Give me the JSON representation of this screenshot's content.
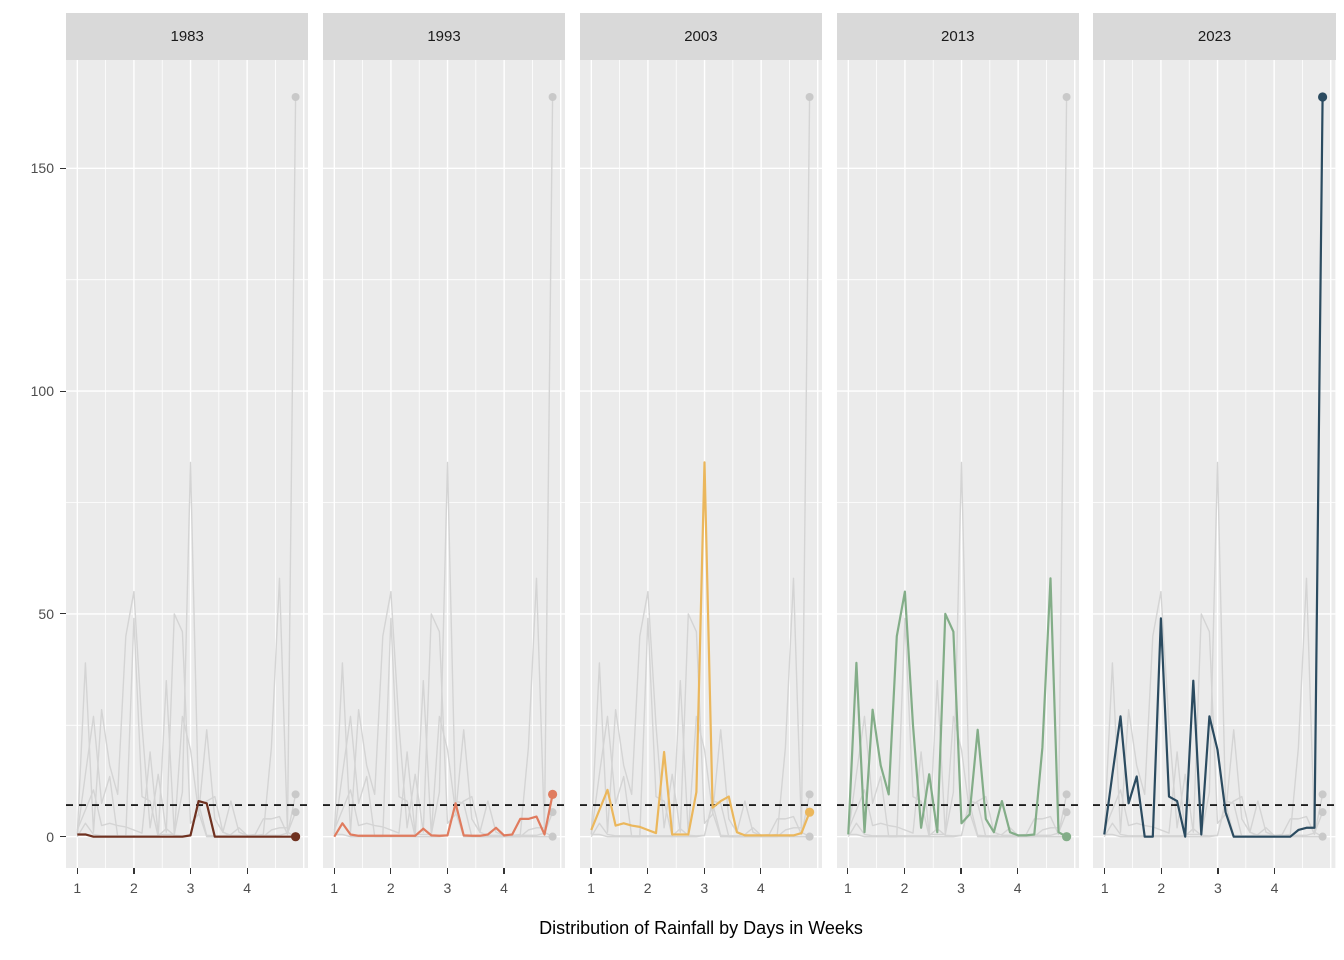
{
  "chart_data": {
    "type": "line",
    "title": "",
    "xlabel": "Distribution of Rainfall by Days in Weeks",
    "ylabel": "",
    "facets": [
      "1983",
      "1993",
      "2003",
      "2013",
      "2023"
    ],
    "x_ticks": [
      1,
      2,
      3,
      4
    ],
    "y_ticks": [
      0,
      50,
      100,
      150
    ],
    "xlim": [
      0.8,
      5.08
    ],
    "ylim": [
      -7,
      174
    ],
    "x_minor_gridlines": [
      1.5,
      2.5,
      3.5,
      4.5
    ],
    "x_major_gridlines": [
      1,
      2,
      3,
      4,
      5
    ],
    "y_minor_gridlines": [
      25,
      75,
      125
    ],
    "x_mapping": "day d of month mapped to week = 1 + (d-1)/7, 28 days per year",
    "reference_line": {
      "value": 7.1,
      "style": "dashed",
      "color": "#000000"
    },
    "grid": true,
    "legend_position": "none",
    "background_series_color": "#d4d4d4",
    "background_dot_color": "#c9c9c9",
    "panel_bg": "#ebebeb",
    "strip_bg": "#d9d9d9",
    "series": [
      {
        "name": "1983",
        "color": "#6f3120",
        "values": [
          0.5,
          0.5,
          0,
          0,
          0,
          0,
          0,
          0,
          0,
          0,
          0,
          0,
          0,
          0,
          0.3,
          8,
          7.5,
          0,
          0,
          0,
          0,
          0,
          0,
          0,
          0,
          0,
          0,
          0
        ]
      },
      {
        "name": "1993",
        "color": "#e07b5e",
        "values": [
          0,
          3,
          0.5,
          0.2,
          0.2,
          0.2,
          0.2,
          0.2,
          0.2,
          0.2,
          0.2,
          1.8,
          0.3,
          0.2,
          0.3,
          7.5,
          0.3,
          0.2,
          0.2,
          0.5,
          2,
          0.3,
          0.5,
          4,
          4,
          4.5,
          0.5,
          9.5
        ]
      },
      {
        "name": "2003",
        "color": "#ebb75c",
        "values": [
          1.5,
          6,
          10.5,
          2.5,
          3,
          2.5,
          2.2,
          1.5,
          0.8,
          19,
          0.5,
          0.5,
          0.5,
          10,
          84,
          6.5,
          8,
          9,
          1,
          0.3,
          0.3,
          0.3,
          0.3,
          0.3,
          0.3,
          0.3,
          0.8,
          5.5
        ]
      },
      {
        "name": "2013",
        "color": "#83ad88",
        "values": [
          0.5,
          39,
          1,
          28.5,
          16,
          9.5,
          45,
          55,
          25,
          2,
          14,
          1,
          50,
          46,
          3,
          5,
          24,
          4,
          1,
          8,
          1,
          0.3,
          0.3,
          0.5,
          20,
          58,
          1,
          0
        ]
      },
      {
        "name": "2023",
        "color": "#2b4b60",
        "values": [
          0.5,
          14,
          27,
          7.5,
          13.5,
          0,
          0,
          49,
          9,
          8,
          0,
          35,
          0.5,
          27,
          19.5,
          5.5,
          0,
          0,
          0,
          0,
          0,
          0,
          0,
          0,
          1.5,
          2,
          2,
          166
        ]
      }
    ]
  }
}
